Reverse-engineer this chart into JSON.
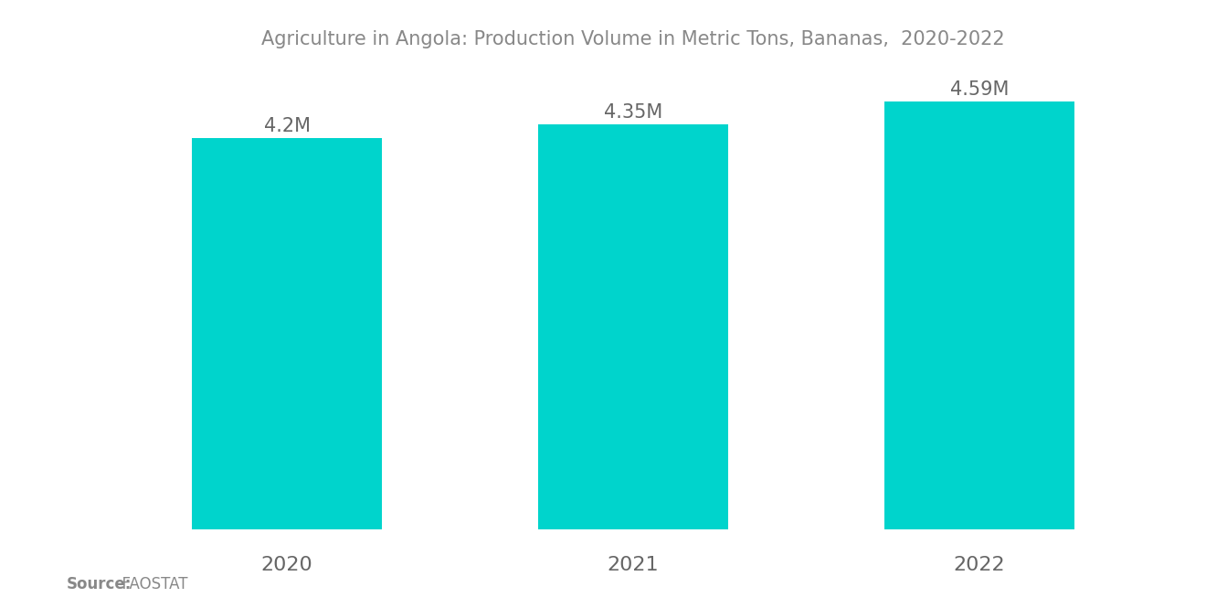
{
  "title": "Agriculture in Angola: Production Volume in Metric Tons, Bananas,  2020-2022",
  "categories": [
    "2020",
    "2021",
    "2022"
  ],
  "values": [
    4200000,
    4350000,
    4590000
  ],
  "labels": [
    "4.2M",
    "4.35M",
    "4.59M"
  ],
  "bar_color": "#00D4CC",
  "background_color": "#ffffff",
  "title_color": "#888888",
  "label_color": "#666666",
  "xtick_color": "#666666",
  "source_label_bold": "Source:",
  "source_label_normal": "  FAOSTAT",
  "ylim": [
    0,
    4900000
  ],
  "title_fontsize": 15,
  "label_fontsize": 15,
  "xtick_fontsize": 16,
  "source_fontsize": 12,
  "bar_width": 0.55
}
